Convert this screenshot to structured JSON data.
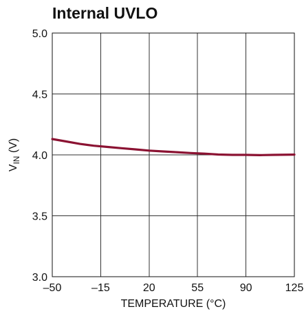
{
  "chart_data": {
    "type": "line",
    "title": "Internal UVLO",
    "xlabel": "TEMPERATURE (°C)",
    "ylabel_main": "V",
    "ylabel_sub": "IN",
    "ylabel_unit": " (V)",
    "xlim": [
      -50,
      125
    ],
    "ylim": [
      3.0,
      5.0
    ],
    "x_ticks": [
      -50,
      -15,
      20,
      55,
      90,
      125
    ],
    "x_tick_labels": [
      "–50",
      "–15",
      "20",
      "55",
      "90",
      "125"
    ],
    "y_ticks": [
      3.0,
      3.5,
      4.0,
      4.5,
      5.0
    ],
    "y_tick_labels": [
      "3.0",
      "3.5",
      "4.0",
      "4.5",
      "5.0"
    ],
    "grid": true,
    "series": [
      {
        "color": "#8b1232",
        "x": [
          -50,
          -40,
          -30,
          -20,
          -10,
          0,
          10,
          20,
          30,
          40,
          50,
          60,
          70,
          80,
          90,
          100,
          110,
          125
        ],
        "y": [
          4.13,
          4.11,
          4.09,
          4.075,
          4.065,
          4.055,
          4.045,
          4.035,
          4.028,
          4.022,
          4.015,
          4.01,
          4.003,
          4.0,
          4.0,
          3.998,
          4.0,
          4.002
        ]
      }
    ]
  }
}
